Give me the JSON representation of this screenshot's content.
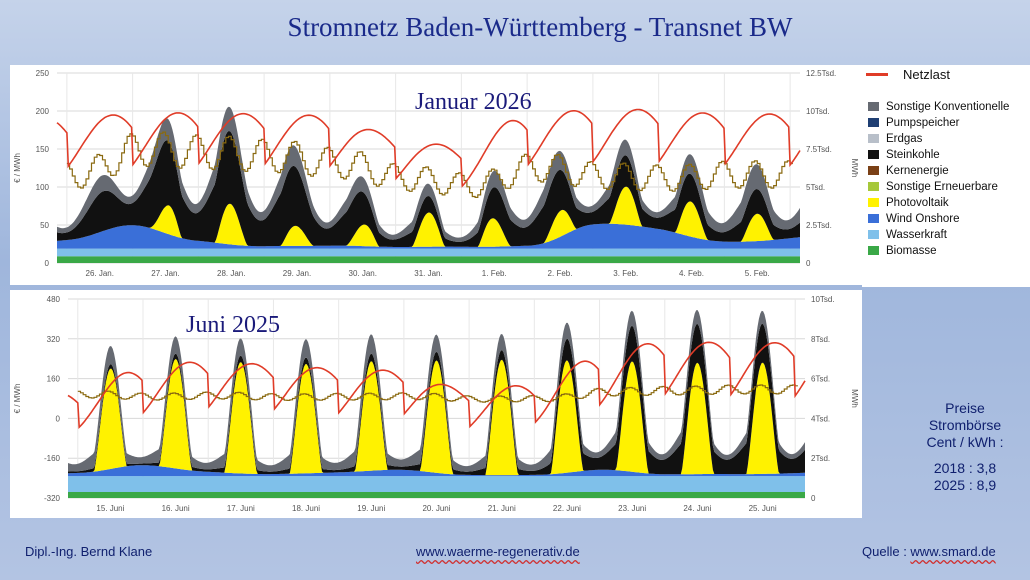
{
  "header": {
    "title": "Stromnetz Baden-Württemberg - Transnet BW"
  },
  "legend": {
    "items": [
      {
        "label": "Netzlast",
        "color": "#e03c28",
        "kind": "line"
      },
      {
        "label": "Sonstige Konventionelle",
        "color": "#666a72",
        "kind": "area"
      },
      {
        "label": "Pumpspeicher",
        "color": "#1f3f73",
        "kind": "area"
      },
      {
        "label": "Erdgas",
        "color": "#b8bfc9",
        "kind": "area"
      },
      {
        "label": "Steinkohle",
        "color": "#111111",
        "kind": "area"
      },
      {
        "label": "Kernenergie",
        "color": "#7a4016",
        "kind": "area"
      },
      {
        "label": "Sonstige Erneuerbare",
        "color": "#a6c83a",
        "kind": "area"
      },
      {
        "label": "Photovoltaik",
        "color": "#fff200",
        "kind": "area"
      },
      {
        "label": "Wind Onshore",
        "color": "#3a6fd8",
        "kind": "area"
      },
      {
        "label": "Wasserkraft",
        "color": "#7fc0ea",
        "kind": "area"
      },
      {
        "label": "Biomasse",
        "color": "#3aa847",
        "kind": "area"
      }
    ]
  },
  "prices": {
    "line1": "Preise",
    "line2": "Strombörse",
    "line3": "Cent / kWh :",
    "row2018": "2018 : 3,8",
    "row2025": "2025 : 8,9"
  },
  "footer": {
    "author": "Dipl.-Ing. Bernd Klane",
    "website": "www.waerme-regenerativ.de",
    "source_label": "Quelle : ",
    "source_site": "www.smard.de"
  },
  "chart_data": [
    {
      "type": "area",
      "title": "Januar 2026",
      "ylabel": "€ / MWh",
      "y2label": "MWh",
      "ylim": [
        0,
        250
      ],
      "yticks": [
        "0",
        "50",
        "100",
        "150",
        "200",
        "250"
      ],
      "y2lim": [
        0,
        12500
      ],
      "y2ticks": [
        "0",
        "2.5Tsd.",
        "5Tsd.",
        "7.5Tsd.",
        "10Tsd.",
        "12.5Tsd."
      ],
      "categories": [
        "26. Jan.",
        "27. Jan.",
        "28. Jan.",
        "29. Jan.",
        "30. Jan.",
        "31. Jan.",
        "1. Feb.",
        "2. Feb.",
        "3. Feb.",
        "4. Feb.",
        "5. Feb."
      ],
      "series_mwh": {
        "Biomasse": [
          450,
          450,
          450,
          450,
          450,
          450,
          450,
          450,
          450,
          450,
          450
        ],
        "Wasserkraft": [
          500,
          500,
          500,
          500,
          500,
          500,
          500,
          500,
          500,
          500,
          500
        ],
        "Wind Onshore": [
          700,
          1400,
          700,
          300,
          200,
          100,
          200,
          300,
          1500,
          1400,
          900
        ],
        "Photovoltaik": [
          0,
          0,
          3500,
          1800,
          800,
          2000,
          2500,
          1200,
          2200,
          2800,
          1800
        ],
        "Steinkohle": [
          1200,
          3500,
          4500,
          4200,
          2800,
          1200,
          800,
          3000,
          2000,
          1800,
          1500
        ],
        "Sonstige Konventionelle": [
          800,
          1200,
          1500,
          1400,
          1000,
          800,
          700,
          1300,
          1000,
          900,
          1500
        ],
        "Netzlast": [
          9500,
          9800,
          9900,
          9800,
          9700,
          8400,
          7600,
          9700,
          10100,
          10100,
          9800
        ]
      },
      "price_eur_mwh": [
        120,
        155,
        150,
        145,
        135,
        115,
        105,
        130,
        118,
        115,
        120
      ]
    },
    {
      "type": "area",
      "title": "Juni 2025",
      "ylabel": "€ / MWh",
      "y2label": "MWh",
      "ylim": [
        -320,
        480
      ],
      "yticks": [
        "-320",
        "-160",
        "0",
        "160",
        "320",
        "480"
      ],
      "y2lim": [
        0,
        10000
      ],
      "y2ticks": [
        "0",
        "2Tsd.",
        "4Tsd.",
        "6Tsd.",
        "8Tsd.",
        "10Tsd."
      ],
      "categories": [
        "15. Juni",
        "16. Juni",
        "17. Juni",
        "18. Juni",
        "19. Juni",
        "20. Juni",
        "21. Juni",
        "22. Juni",
        "23. Juni",
        "24. Juni",
        "25. Juni"
      ],
      "series_mwh": {
        "Biomasse": [
          300,
          300,
          300,
          300,
          300,
          300,
          300,
          300,
          300,
          300,
          300
        ],
        "Wasserkraft": [
          800,
          800,
          800,
          800,
          800,
          800,
          800,
          800,
          800,
          800,
          800
        ],
        "Wind Onshore": [
          200,
          500,
          300,
          200,
          200,
          300,
          100,
          100,
          300,
          100,
          200
        ],
        "Photovoltaik": [
          4800,
          5300,
          5700,
          5500,
          5500,
          5500,
          5800,
          5800,
          5500,
          5600,
          5600
        ],
        "Steinkohle": [
          200,
          200,
          300,
          300,
          300,
          400,
          400,
          500,
          1500,
          1800,
          1800
        ],
        "Sonstige Konventionelle": [
          900,
          800,
          800,
          800,
          900,
          900,
          700,
          800,
          700,
          700,
          600
        ],
        "Netzlast": [
          5300,
          6500,
          6900,
          6700,
          6500,
          6400,
          5400,
          5700,
          7100,
          7900,
          7800
        ]
      },
      "price_eur_mwh": [
        100,
        90,
        95,
        88,
        90,
        92,
        80,
        82,
        110,
        115,
        120
      ]
    }
  ]
}
